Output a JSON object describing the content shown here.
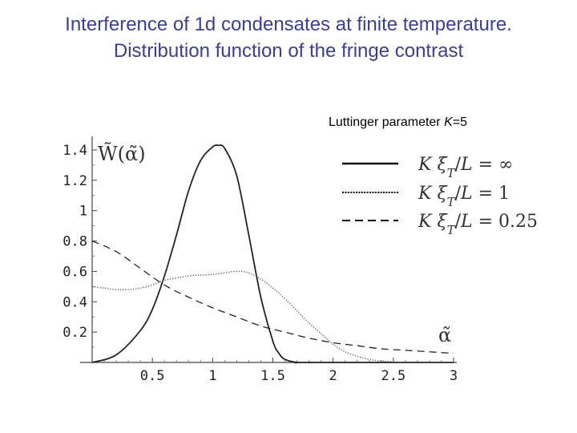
{
  "title": {
    "line1": "Interference of 1d condensates at finite temperature.",
    "line2": "Distribution function of the fringe contrast"
  },
  "caption": {
    "prefix": "Luttinger parameter ",
    "param": "K",
    "suffix": "=5"
  },
  "chart_data": {
    "type": "line",
    "ylabel": "W̃(α̃)",
    "xlabel": "α̃",
    "xlim": [
      0,
      3
    ],
    "ylim": [
      0,
      1.45
    ],
    "x_ticks": [
      "0.5",
      "1",
      "1.5",
      "2",
      "2.5",
      "3"
    ],
    "y_ticks": [
      "0.2",
      "0.4",
      "0.6",
      "0.8",
      "1",
      "1.2",
      "1.4"
    ],
    "x_tick_values": [
      0.5,
      1,
      1.5,
      2,
      2.5,
      3
    ],
    "y_tick_values": [
      0.2,
      0.4,
      0.6,
      0.8,
      1,
      1.2,
      1.4
    ],
    "series": [
      {
        "name": "K ξT/L = ∞",
        "style": "solid",
        "x": [
          0,
          0.2,
          0.4,
          0.5,
          0.6,
          0.7,
          0.8,
          0.9,
          1.0,
          1.05,
          1.1,
          1.2,
          1.3,
          1.4,
          1.5,
          1.55,
          1.6,
          1.7,
          1.8,
          3.0
        ],
        "y": [
          0.0,
          0.05,
          0.21,
          0.35,
          0.57,
          0.84,
          1.13,
          1.33,
          1.42,
          1.43,
          1.41,
          1.23,
          0.84,
          0.43,
          0.14,
          0.06,
          0.02,
          0.0,
          0.0,
          0.0
        ]
      },
      {
        "name": "K ξT/L = 1",
        "style": "dotted",
        "x": [
          0,
          0.1,
          0.2,
          0.3,
          0.4,
          0.5,
          0.6,
          0.8,
          1.0,
          1.2,
          1.3,
          1.4,
          1.5,
          1.6,
          1.7,
          1.8,
          1.9,
          2.0,
          2.1,
          2.2,
          2.3,
          2.4,
          2.6,
          3.0
        ],
        "y": [
          0.5,
          0.49,
          0.48,
          0.48,
          0.49,
          0.51,
          0.54,
          0.57,
          0.58,
          0.6,
          0.59,
          0.55,
          0.49,
          0.42,
          0.34,
          0.26,
          0.19,
          0.12,
          0.07,
          0.04,
          0.02,
          0.01,
          0.0,
          0.0
        ]
      },
      {
        "name": "K ξT/L = 0.25",
        "style": "dashed",
        "x": [
          0,
          0.2,
          0.4,
          0.6,
          0.8,
          1.0,
          1.2,
          1.4,
          1.6,
          1.8,
          2.0,
          2.2,
          2.4,
          2.6,
          2.8,
          3.0
        ],
        "y": [
          0.8,
          0.73,
          0.62,
          0.51,
          0.43,
          0.36,
          0.3,
          0.24,
          0.2,
          0.16,
          0.13,
          0.11,
          0.09,
          0.08,
          0.07,
          0.06
        ]
      }
    ],
    "legend": [
      {
        "style": "solid",
        "value": "∞"
      },
      {
        "style": "dotted",
        "value": "1"
      },
      {
        "style": "dashed",
        "value": "0.25"
      }
    ],
    "legend_placement": "top-right",
    "grid": false
  }
}
